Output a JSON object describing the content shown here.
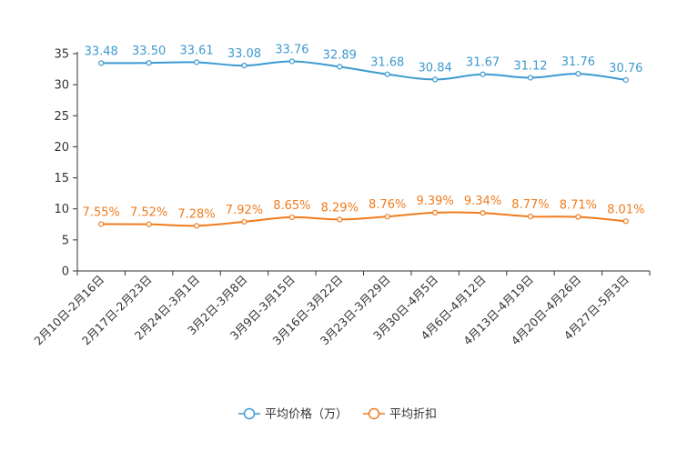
{
  "chart_data": {
    "type": "line",
    "title": "",
    "xlabel": "",
    "ylabel": "",
    "ylim": [
      0,
      35
    ],
    "yticks": [
      0,
      5,
      10,
      15,
      20,
      25,
      30,
      35
    ],
    "grid": false,
    "legend_position": "bottom",
    "categories": [
      "2月10日-2月16日",
      "2月17日-2月23日",
      "2月24日-3月1日",
      "3月2日-3月8日",
      "3月9日-3月15日",
      "3月16日-3月22日",
      "3月23日-3月29日",
      "3月30日-4月5日",
      "4月6日-4月12日",
      "4月13日-4月19日",
      "4月20日-4月26日",
      "4月27日-5月3日"
    ],
    "series": [
      {
        "name": "平均价格（万）",
        "color": "#3d9ad1",
        "values": [
          33.48,
          33.5,
          33.61,
          33.08,
          33.76,
          32.89,
          31.68,
          30.84,
          31.67,
          31.12,
          31.76,
          30.76
        ],
        "labels": [
          "33.48",
          "33.50",
          "33.61",
          "33.08",
          "33.76",
          "32.89",
          "31.68",
          "30.84",
          "31.67",
          "31.12",
          "31.76",
          "30.76"
        ]
      },
      {
        "name": "平均折扣",
        "color": "#f07c1e",
        "values": [
          7.55,
          7.52,
          7.28,
          7.92,
          8.65,
          8.29,
          8.76,
          9.39,
          9.34,
          8.77,
          8.71,
          8.01
        ],
        "labels": [
          "7.55%",
          "7.52%",
          "7.28%",
          "7.92%",
          "8.65%",
          "8.29%",
          "8.76%",
          "9.39%",
          "9.34%",
          "8.77%",
          "8.71%",
          "8.01%"
        ]
      }
    ]
  }
}
